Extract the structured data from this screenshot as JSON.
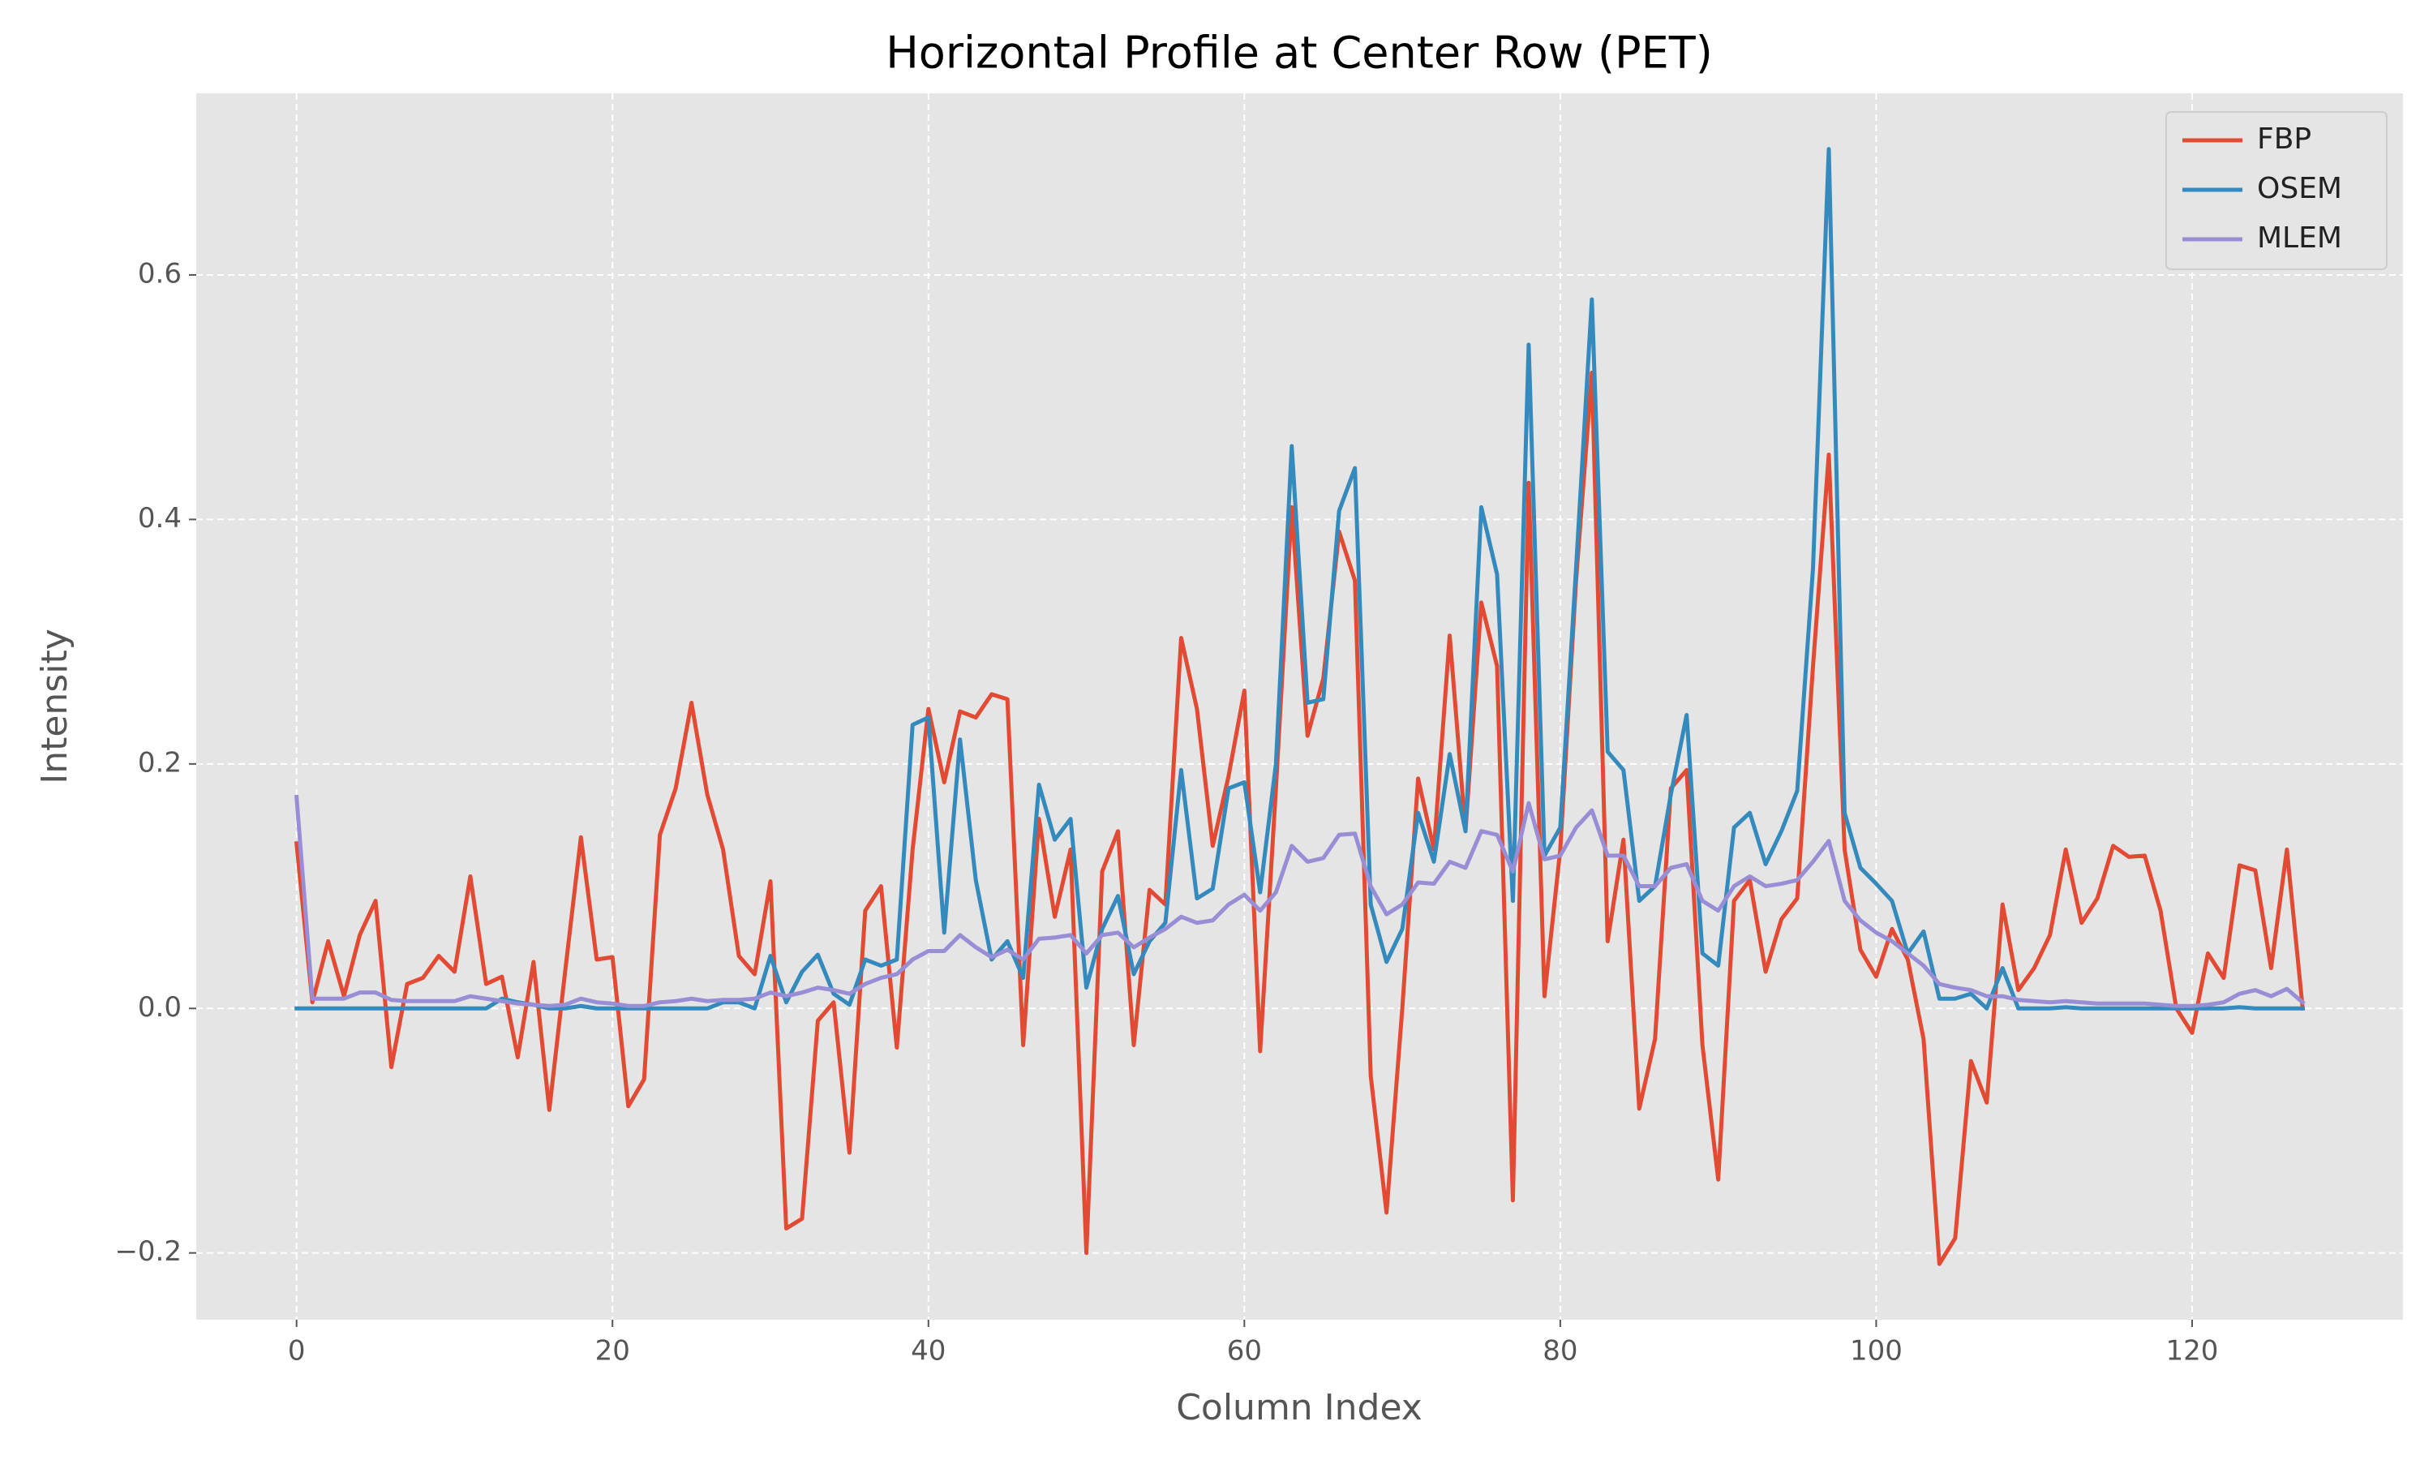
{
  "chart_data": {
    "type": "line",
    "title": "Horizontal Profile at Center Row (PET)",
    "xlabel": "Column Index",
    "ylabel": "Intensity",
    "x": [
      0,
      1,
      2,
      3,
      4,
      5,
      6,
      7,
      8,
      9,
      10,
      11,
      12,
      13,
      14,
      15,
      16,
      17,
      18,
      19,
      20,
      21,
      22,
      23,
      24,
      25,
      26,
      27,
      28,
      29,
      30,
      31,
      32,
      33,
      34,
      35,
      36,
      37,
      38,
      39,
      40,
      41,
      42,
      43,
      44,
      45,
      46,
      47,
      48,
      49,
      50,
      51,
      52,
      53,
      54,
      55,
      56,
      57,
      58,
      59,
      60,
      61,
      62,
      63,
      64,
      65,
      66,
      67,
      68,
      69,
      70,
      71,
      72,
      73,
      74,
      75,
      76,
      77,
      78,
      79,
      80,
      81,
      82,
      83,
      84,
      85,
      86,
      87,
      88,
      89,
      90,
      91,
      92,
      93,
      94,
      95,
      96,
      97,
      98,
      99,
      100,
      101,
      102,
      103,
      104,
      105,
      106,
      107,
      108,
      109,
      110,
      111,
      112,
      113,
      114,
      115,
      116,
      117,
      118,
      119,
      120,
      121,
      122,
      123,
      124,
      125,
      126,
      127
    ],
    "series": [
      {
        "name": "FBP",
        "color": "#E24A33",
        "values": [
          0.135,
          0.005,
          0.055,
          0.01,
          0.06,
          0.088,
          -0.048,
          0.02,
          0.025,
          0.043,
          0.03,
          0.108,
          0.02,
          0.026,
          -0.04,
          0.038,
          -0.083,
          0.03,
          0.14,
          0.04,
          0.042,
          -0.08,
          -0.058,
          0.142,
          0.18,
          0.25,
          0.175,
          0.13,
          0.043,
          0.028,
          0.104,
          -0.18,
          -0.172,
          -0.01,
          0.005,
          -0.118,
          0.08,
          0.1,
          -0.032,
          0.13,
          0.245,
          0.185,
          0.243,
          0.238,
          0.257,
          0.253,
          -0.03,
          0.155,
          0.075,
          0.13,
          -0.2,
          0.112,
          0.145,
          -0.03,
          0.097,
          0.085,
          0.303,
          0.245,
          0.133,
          0.19,
          0.26,
          -0.035,
          0.18,
          0.41,
          0.223,
          0.27,
          0.39,
          0.35,
          -0.055,
          -0.167,
          0.0,
          0.188,
          0.13,
          0.305,
          0.145,
          0.332,
          0.28,
          -0.157,
          0.43,
          0.01,
          0.13,
          0.35,
          0.52,
          0.055,
          0.138,
          -0.082,
          -0.025,
          0.18,
          0.195,
          -0.03,
          -0.14,
          0.088,
          0.105,
          0.03,
          0.073,
          0.09,
          0.28,
          0.453,
          0.13,
          0.048,
          0.026,
          0.065,
          0.04,
          -0.025,
          -0.209,
          -0.188,
          -0.043,
          -0.077,
          0.085,
          0.015,
          0.033,
          0.06,
          0.13,
          0.07,
          0.09,
          0.133,
          0.124,
          0.125,
          0.08,
          0.0,
          -0.02,
          0.045,
          0.025,
          0.117,
          0.113,
          0.033,
          0.13,
          0.0
        ]
      },
      {
        "name": "OSEM",
        "color": "#348ABD",
        "values": [
          0,
          0,
          0,
          0,
          0,
          0,
          0,
          0,
          0,
          0,
          0,
          0,
          0,
          0.008,
          0.005,
          0.003,
          0,
          0,
          0.002,
          0,
          0,
          0,
          0,
          0,
          0,
          0,
          0,
          0.005,
          0.005,
          0,
          0.043,
          0.005,
          0.03,
          0.044,
          0.012,
          0.003,
          0.04,
          0.035,
          0.04,
          0.232,
          0.238,
          0.062,
          0.22,
          0.105,
          0.04,
          0.055,
          0.025,
          0.183,
          0.138,
          0.155,
          0.017,
          0.065,
          0.092,
          0.028,
          0.055,
          0.07,
          0.195,
          0.09,
          0.098,
          0.18,
          0.185,
          0.095,
          0.2,
          0.46,
          0.25,
          0.253,
          0.407,
          0.442,
          0.085,
          0.038,
          0.065,
          0.16,
          0.12,
          0.208,
          0.145,
          0.41,
          0.355,
          0.088,
          0.543,
          0.125,
          0.148,
          0.36,
          0.58,
          0.21,
          0.195,
          0.088,
          0.1,
          0.175,
          0.24,
          0.045,
          0.035,
          0.148,
          0.16,
          0.118,
          0.145,
          0.178,
          0.36,
          0.703,
          0.16,
          0.115,
          0.102,
          0.088,
          0.045,
          0.063,
          0.008,
          0.008,
          0.012,
          0,
          0.033,
          0,
          0,
          0,
          0.001,
          0,
          0,
          0,
          0,
          0,
          0,
          0,
          0,
          0,
          0,
          0.001,
          0,
          0,
          0,
          0
        ]
      },
      {
        "name": "MLEM",
        "color": "#988ED5",
        "values": [
          0.173,
          0.008,
          0.008,
          0.008,
          0.013,
          0.013,
          0.007,
          0.006,
          0.006,
          0.006,
          0.006,
          0.01,
          0.008,
          0.006,
          0.004,
          0.003,
          0.002,
          0.003,
          0.008,
          0.005,
          0.004,
          0.002,
          0.002,
          0.005,
          0.006,
          0.008,
          0.006,
          0.007,
          0.007,
          0.008,
          0.013,
          0.01,
          0.013,
          0.017,
          0.015,
          0.012,
          0.02,
          0.025,
          0.028,
          0.04,
          0.047,
          0.047,
          0.06,
          0.05,
          0.042,
          0.048,
          0.04,
          0.057,
          0.058,
          0.06,
          0.045,
          0.06,
          0.062,
          0.05,
          0.058,
          0.065,
          0.075,
          0.07,
          0.072,
          0.085,
          0.093,
          0.08,
          0.095,
          0.133,
          0.12,
          0.123,
          0.142,
          0.143,
          0.1,
          0.077,
          0.085,
          0.103,
          0.102,
          0.12,
          0.115,
          0.145,
          0.142,
          0.112,
          0.168,
          0.122,
          0.125,
          0.148,
          0.162,
          0.125,
          0.125,
          0.1,
          0.1,
          0.115,
          0.118,
          0.088,
          0.08,
          0.1,
          0.108,
          0.1,
          0.102,
          0.105,
          0.12,
          0.137,
          0.088,
          0.072,
          0.062,
          0.055,
          0.045,
          0.035,
          0.02,
          0.017,
          0.015,
          0.01,
          0.01,
          0.007,
          0.006,
          0.005,
          0.006,
          0.005,
          0.004,
          0.004,
          0.004,
          0.004,
          0.003,
          0.002,
          0.002,
          0.003,
          0.005,
          0.012,
          0.015,
          0.01,
          0.016,
          0.005
        ]
      }
    ],
    "xlim": [
      -6.35,
      133.35
    ],
    "ylim": [
      -0.2546,
      0.7486
    ],
    "xticks": [
      0,
      20,
      40,
      60,
      80,
      100,
      120
    ],
    "yticks": [
      {
        "value": -0.2,
        "label": "−0.2"
      },
      {
        "value": 0,
        "label": "0.0"
      },
      0.2,
      0.4,
      0.6
    ],
    "grid": true,
    "legend": "upper-right"
  }
}
